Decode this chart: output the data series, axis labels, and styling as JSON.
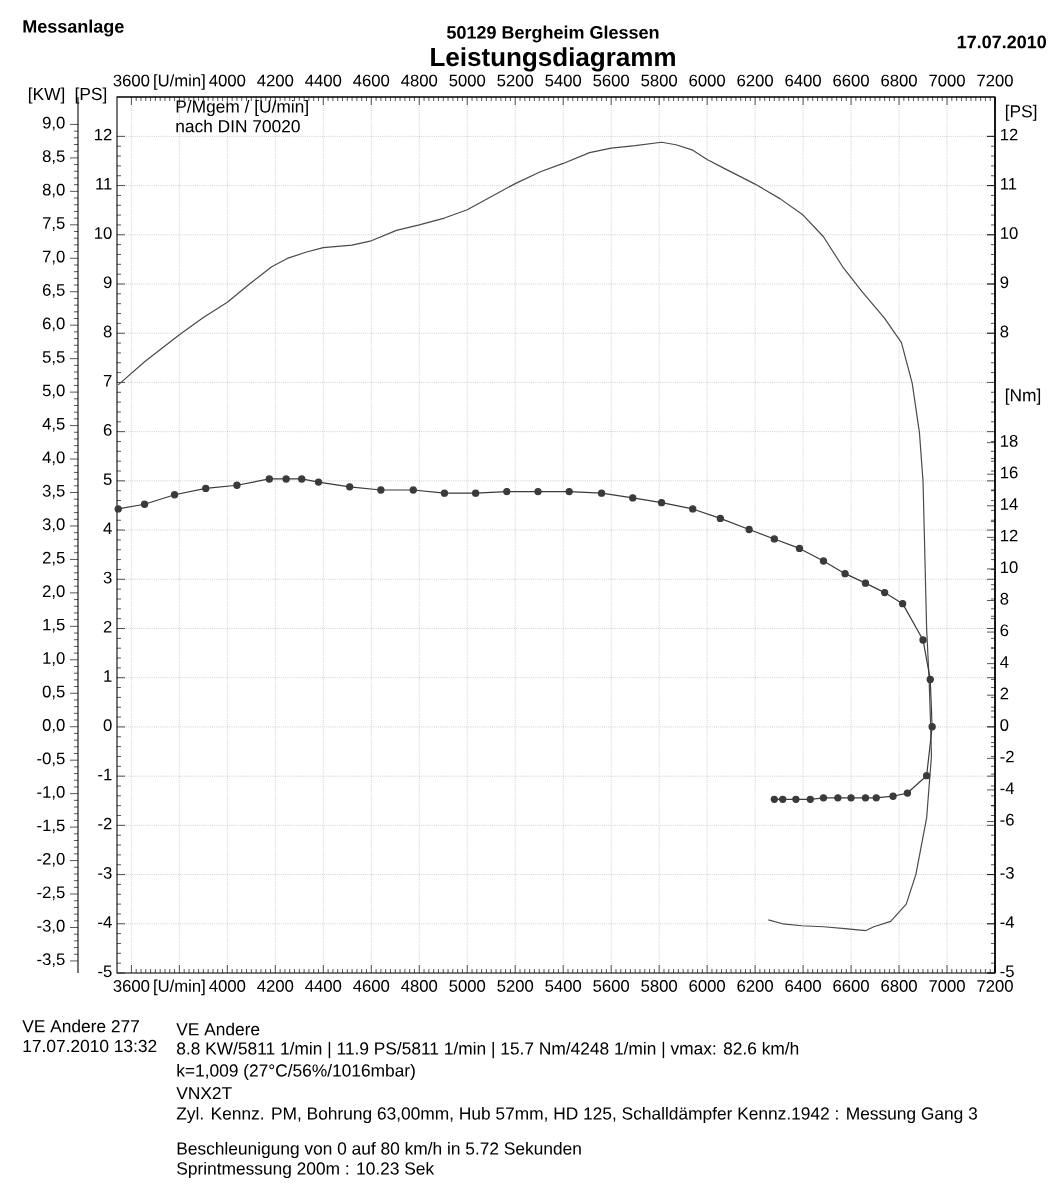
{
  "chart_data": [
    {
      "type": "line",
      "title": "Leistungsdiagramm",
      "xlabel": "[U/min]",
      "x2label": "[U/min]",
      "ylabel": "[PS]",
      "y2label": "[PS]",
      "y3label": "[KW]",
      "xlim": [
        3540,
        7200
      ],
      "xticks": [
        3600,
        {
          "value": 3800,
          "label": null
        },
        4000,
        4200,
        4400,
        4600,
        4800,
        5000,
        5200,
        5400,
        5600,
        5800,
        6000,
        6200,
        6400,
        6600,
        6800,
        7000,
        7200
      ],
      "x2lim": [
        3540,
        7200
      ],
      "x2ticks": [
        3600,
        {
          "value": 3800,
          "label": null
        },
        4000,
        4200,
        4400,
        4600,
        4800,
        5000,
        5200,
        5400,
        5600,
        5800,
        6000,
        6200,
        6400,
        6600,
        6800,
        7000,
        7200
      ],
      "ylim": [
        -5,
        12.8
      ],
      "yticks": [
        -5,
        -4,
        -3,
        -2,
        -1,
        0,
        1,
        2,
        3,
        4,
        5,
        6,
        7,
        8,
        9,
        10,
        11,
        12
      ],
      "y2lim": [
        -5,
        12.8
      ],
      "y2ticks": [
        -5,
        -4,
        -3,
        8,
        9,
        10,
        11,
        12
      ],
      "y3lim": [
        -3.68,
        9.41
      ],
      "y3ticks": [
        {
          "value": -3.5,
          "label": "-3,5"
        },
        {
          "value": -3,
          "label": "-3,0"
        },
        {
          "value": -2.5,
          "label": "-2,5"
        },
        {
          "value": -2,
          "label": "-2,0"
        },
        {
          "value": -1.5,
          "label": "-1,5"
        },
        {
          "value": -1,
          "label": "-1,0"
        },
        {
          "value": -0.5,
          "label": "-0,5"
        },
        {
          "value": 0,
          "label": "0,0"
        },
        {
          "value": 0.5,
          "label": "0,5"
        },
        {
          "value": 1,
          "label": "1,0"
        },
        {
          "value": 1.5,
          "label": "1,5"
        },
        {
          "value": 2,
          "label": "2,0"
        },
        {
          "value": 2.5,
          "label": "2,5"
        },
        {
          "value": 3,
          "label": "3,0"
        },
        {
          "value": 3.5,
          "label": "3,5"
        },
        {
          "value": 4,
          "label": "4,0"
        },
        {
          "value": 4.5,
          "label": "4,5"
        },
        {
          "value": 5,
          "label": "5,0"
        },
        {
          "value": 5.5,
          "label": "5,5"
        },
        {
          "value": 6,
          "label": "6,0"
        },
        {
          "value": 6.5,
          "label": "6,5"
        },
        {
          "value": 7,
          "label": "7,0"
        },
        {
          "value": 7.5,
          "label": "7,5"
        },
        {
          "value": 8,
          "label": "8,0"
        },
        {
          "value": 8.5,
          "label": "8,5"
        },
        {
          "value": 9,
          "label": "9,0"
        }
      ],
      "grid": true,
      "annotations": [
        "Messanlage",
        "50129 Bergheim Glessen",
        "17.07.2010",
        "P/Mgem / [U/min]",
        "nach DIN 70020",
        "VE Andere 277",
        "17.07.2010 13:32",
        "VE Andere",
        "8.8 KW/5811 1/min | 11.9 PS/5811 1/min | 15.7 Nm/4248 1/min | vmax: 82.6 km/h",
        "k=1,009 (27°C/56%/1016mbar)",
        "VNX2T",
        "Zyl. Kennz. PM, Bohrung 63,00mm, Hub 57mm, HD 125, Schalldämpfer Kennz.1942 : Messung Gang 3",
        "Beschleunigung von 0 auf 80 km/h in 5.72 Sekunden",
        "Sprintmessung 200m : 10.23 Sek"
      ],
      "series": [
        {
          "color": "#4a4a4a",
          "x": [
            3545,
            3655,
            3800,
            3900,
            4000,
            4095,
            4185,
            4250,
            4330,
            4400,
            4520,
            4595,
            4705,
            4800,
            4905,
            5000,
            5105,
            5200,
            5305,
            5400,
            5510,
            5600,
            5700,
            5810,
            5870,
            5940,
            6000,
            6075,
            6200,
            6305,
            6400,
            6485,
            6565,
            6645,
            6740,
            6810,
            6855,
            6885,
            6900,
            6905,
            6915,
            6925,
            6932,
            6935,
            6915,
            6870,
            6830,
            6765,
            6695,
            6660,
            6575,
            6485,
            6395,
            6315,
            6255
          ],
          "values": [
            6.95,
            7.42,
            7.97,
            8.32,
            8.63,
            9.01,
            9.35,
            9.52,
            9.65,
            9.74,
            9.79,
            9.87,
            10.09,
            10.2,
            10.34,
            10.51,
            10.79,
            11.04,
            11.28,
            11.45,
            11.67,
            11.76,
            11.81,
            11.88,
            11.83,
            11.72,
            11.53,
            11.34,
            11.03,
            10.73,
            10.4,
            9.96,
            9.35,
            8.85,
            8.3,
            7.81,
            6.98,
            5.98,
            4.99,
            4.0,
            2.0,
            1.0,
            0.0,
            -0.6,
            -1.85,
            -3.0,
            -3.6,
            -3.95,
            -4.06,
            -4.14,
            -4.1,
            -4.06,
            -4.04,
            -4.0,
            -3.92
          ]
        }
      ]
    },
    {
      "type": "line",
      "ylabel": "[Nm]",
      "xlim": [
        3540,
        7200
      ],
      "ylim": [
        -15.6,
        39.9
      ],
      "yticks": [
        -6,
        -4,
        -2,
        0,
        2,
        4,
        6,
        8,
        10,
        12,
        14,
        16,
        18
      ],
      "tick_labels": "y",
      "series": [
        {
          "color": "#3a3a3a",
          "marker": "circle",
          "x": [
            3545,
            3655,
            3780,
            3910,
            4040,
            4175,
            4245,
            4310,
            4380,
            4510,
            4640,
            4775,
            4905,
            5035,
            5165,
            5295,
            5425,
            5560,
            5690,
            5810,
            5940,
            6055,
            6175,
            6280,
            6385,
            6485,
            6575,
            6660,
            6740,
            6815,
            6900,
            6930,
            6938,
            6915,
            6835,
            6775,
            6705,
            6660,
            6600,
            6545,
            6485,
            6430,
            6370,
            6315,
            6280
          ],
          "values": [
            13.8,
            14.1,
            14.7,
            15.1,
            15.3,
            15.7,
            15.7,
            15.7,
            15.5,
            15.2,
            15.0,
            15.0,
            14.8,
            14.8,
            14.9,
            14.9,
            14.9,
            14.8,
            14.5,
            14.2,
            13.8,
            13.2,
            12.5,
            11.9,
            11.3,
            10.5,
            9.7,
            9.1,
            8.5,
            7.8,
            5.5,
            3.0,
            0.0,
            -3.1,
            -4.2,
            -4.4,
            -4.5,
            -4.5,
            -4.5,
            -4.5,
            -4.5,
            -4.6,
            -4.6,
            -4.6,
            -4.6
          ]
        }
      ]
    }
  ]
}
